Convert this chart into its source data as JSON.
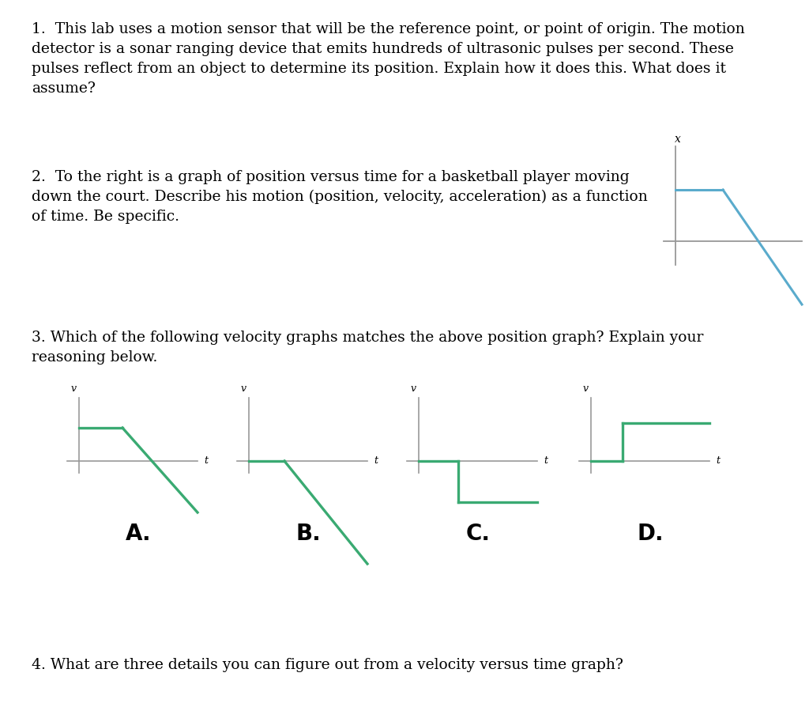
{
  "bg_color": "#ffffff",
  "text_color": "#000000",
  "line_color_gray": "#999999",
  "line_color_blue": "#5aabcc",
  "line_color_green": "#3aaa72",
  "q1_text": "1.  This lab uses a motion sensor that will be the reference point, or point of origin. The motion\ndetector is a sonar ranging device that emits hundreds of ultrasonic pulses per second. These\npulses reflect from an object to determine its position. Explain how it does this. What does it\nassume?",
  "q2_text": "2.  To the right is a graph of position versus time for a basketball player moving\ndown the court. Describe his motion (position, velocity, acceleration) as a function\nof time. Be specific.",
  "q3_text": "3. Which of the following velocity graphs matches the above position graph? Explain your\nreasoning below.",
  "q4_text": "4. What are three details you can figure out from a velocity versus time graph?",
  "label_A": "A.",
  "label_B": "B.",
  "label_C": "C.",
  "label_D": "D.",
  "label_fontsize": 20,
  "question_fontsize": 13.5,
  "axis_label_fontsize": 10
}
